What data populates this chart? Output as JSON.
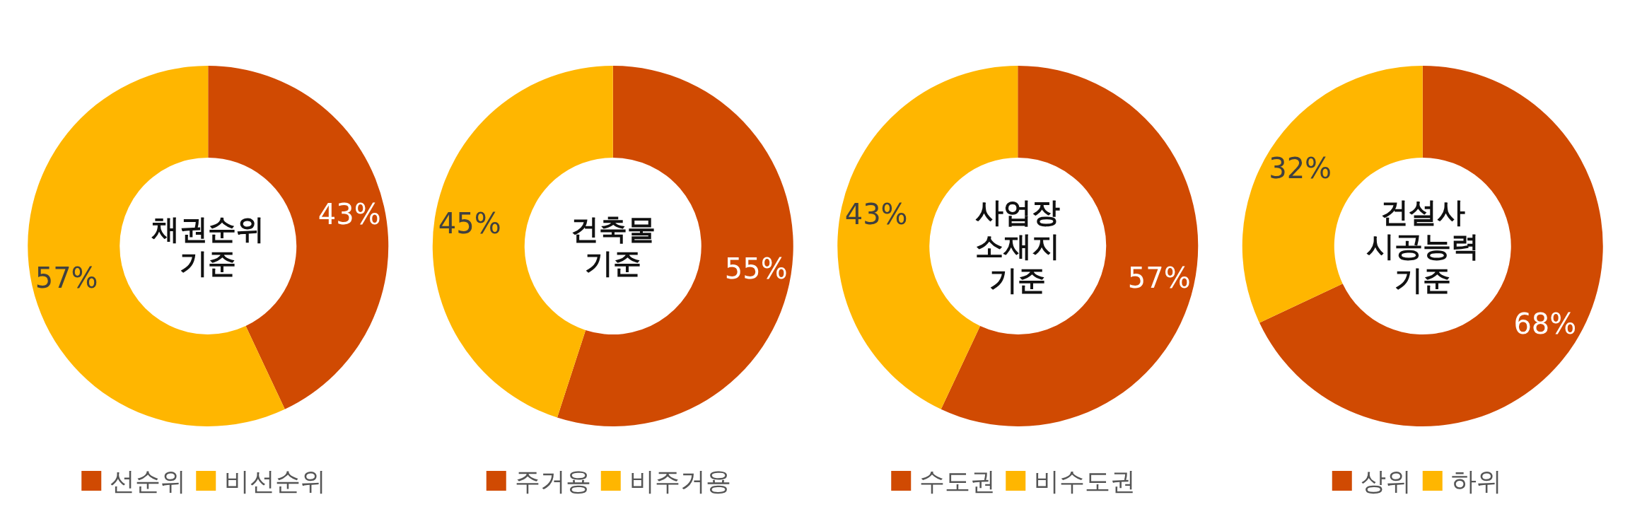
{
  "chart_data": [
    {
      "type": "donut",
      "title": "채권순위 기준",
      "categories": [
        "선순위",
        "비선순위"
      ],
      "values": [
        43,
        57
      ],
      "colors": [
        "#d04a02",
        "#ffb600"
      ],
      "value_labels": [
        "43%",
        "57%"
      ],
      "legend": "bottom"
    },
    {
      "type": "donut",
      "title": "건축물 기준",
      "categories": [
        "주거용",
        "비주거용"
      ],
      "values": [
        55,
        45
      ],
      "colors": [
        "#d04a02",
        "#ffb600"
      ],
      "value_labels": [
        "55%",
        "45%"
      ],
      "legend": "bottom"
    },
    {
      "type": "donut",
      "title": "사업장 소재지 기준",
      "categories": [
        "수도권",
        "비수도권"
      ],
      "values": [
        57,
        43
      ],
      "colors": [
        "#d04a02",
        "#ffb600"
      ],
      "value_labels": [
        "57%",
        "43%"
      ],
      "legend": "bottom"
    },
    {
      "type": "donut",
      "title": "건설사 시공능력 기준",
      "categories": [
        "상위",
        "하위"
      ],
      "values": [
        68,
        32
      ],
      "colors": [
        "#d04a02",
        "#ffb600"
      ],
      "value_labels": [
        "68%",
        "32%"
      ],
      "legend": "bottom"
    }
  ]
}
